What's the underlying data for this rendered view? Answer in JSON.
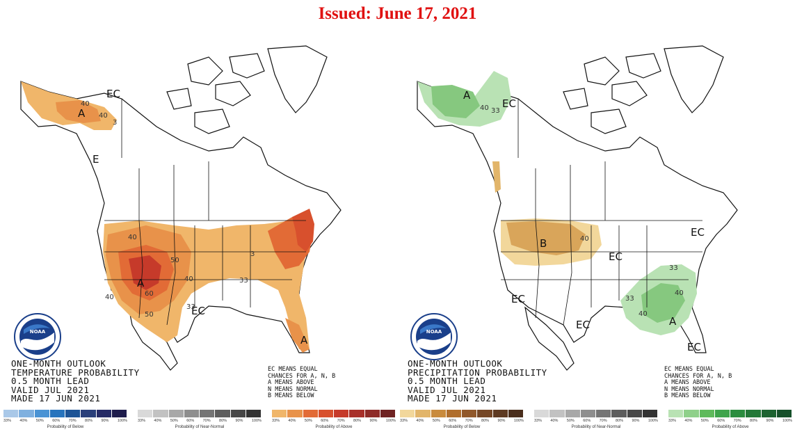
{
  "issued": "Issued: June 17, 2021",
  "colors": {
    "issued_red": "#e01010",
    "above_temp_light": "#f0c070",
    "above_temp_mid": "#e58a40",
    "above_temp_strong": "#d8502d",
    "above_temp_deep": "#c0322a",
    "precip_above_light": "#b9e2b4",
    "precip_above_mid": "#86c87f",
    "precip_below_light": "#f2d79b",
    "precip_below_mid": "#d9a55a"
  },
  "temperature": {
    "title_lines": [
      "ONE-MONTH OUTLOOK",
      "TEMPERATURE PROBABILITY",
      "0.5 MONTH LEAD",
      "VALID JUL 2021",
      "MADE 17 JUN 2021"
    ],
    "labels": {
      "ec_alaska": "EC",
      "ec_west": "E",
      "ec_south": "EC",
      "a_alaska": "A",
      "a_west": "A",
      "a_florida": "A",
      "c40_a": "40",
      "c40_b": "40",
      "c40_c": "40",
      "c40_d": "40",
      "c40_e": "40",
      "c50_a": "50",
      "c50_b": "50",
      "c60": "60",
      "c33_a": "33",
      "c33_b": "33",
      "c33_c": "3",
      "c33_d": "3"
    }
  },
  "precipitation": {
    "title_lines": [
      "ONE-MONTH OUTLOOK",
      "PRECIPITATION PROBABILITY",
      "0.5 MONTH LEAD",
      "VALID JUL 2021",
      "MADE 17 JUN 2021"
    ],
    "labels": {
      "a_alaska": "A",
      "ec_alaska": "EC",
      "b_north": "B",
      "c40_north": "40",
      "ec_mid": "EC",
      "ec_sw": "EC",
      "ec_south": "EC",
      "ec_east": "EC",
      "ec_carib": "EC",
      "a_se": "A",
      "c40_se_a": "40",
      "c40_se_b": "40",
      "c33_se_a": "33",
      "c33_se_b": "33",
      "c40_ak": "40",
      "c33_ak": "33"
    }
  },
  "legend_note": [
    "EC MEANS EQUAL",
    "CHANCES FOR A, N, B",
    "A MEANS ABOVE",
    "N MEANS NORMAL",
    "B MEANS BELOW"
  ],
  "legend_bars": {
    "temp": [
      {
        "caption": "Probability of Below",
        "ticks": [
          "33%",
          "40%",
          "50%",
          "60%",
          "70%",
          "80%",
          "90%",
          "100%"
        ],
        "colors": [
          "#a9c8e8",
          "#7fb0df",
          "#4a93d4",
          "#2774bd",
          "#1d5496",
          "#2a3f7a",
          "#262b66",
          "#1e1c4c"
        ]
      },
      {
        "caption": "Probability of Near-Normal",
        "ticks": [
          "33%",
          "40%",
          "50%",
          "60%",
          "70%",
          "80%",
          "90%",
          "100%"
        ],
        "colors": [
          "#d9d9d9",
          "#c2c2c2",
          "#a8a8a8",
          "#8e8e8e",
          "#757575",
          "#5d5d5d",
          "#474747",
          "#333333"
        ]
      },
      {
        "caption": "Probability of Above",
        "ticks": [
          "33%",
          "40%",
          "50%",
          "60%",
          "70%",
          "80%",
          "90%",
          "100%"
        ],
        "colors": [
          "#f0b66a",
          "#e8924a",
          "#e26b36",
          "#d8502d",
          "#c63a2a",
          "#a8302a",
          "#8e2b28",
          "#6e2222"
        ]
      }
    ],
    "precip": [
      {
        "caption": "Probability of Below",
        "ticks": [
          "33%",
          "40%",
          "50%",
          "60%",
          "70%",
          "80%",
          "90%",
          "100%"
        ],
        "colors": [
          "#f2d79b",
          "#e2b56a",
          "#c98b3d",
          "#b06e2c",
          "#91582a",
          "#754726",
          "#5e3a22",
          "#4a2e1c"
        ]
      },
      {
        "caption": "Probability of Near-Normal",
        "ticks": [
          "33%",
          "40%",
          "50%",
          "60%",
          "70%",
          "80%",
          "90%",
          "100%"
        ],
        "colors": [
          "#d9d9d9",
          "#c2c2c2",
          "#a8a8a8",
          "#8e8e8e",
          "#757575",
          "#5d5d5d",
          "#474747",
          "#333333"
        ]
      },
      {
        "caption": "Probability of Above",
        "ticks": [
          "33%",
          "40%",
          "50%",
          "60%",
          "70%",
          "80%",
          "90%",
          "100%"
        ],
        "colors": [
          "#b9e2b4",
          "#8fd08a",
          "#5fba5c",
          "#3ea44b",
          "#2b8d3f",
          "#237838",
          "#1d6331",
          "#16502a"
        ]
      }
    ]
  }
}
